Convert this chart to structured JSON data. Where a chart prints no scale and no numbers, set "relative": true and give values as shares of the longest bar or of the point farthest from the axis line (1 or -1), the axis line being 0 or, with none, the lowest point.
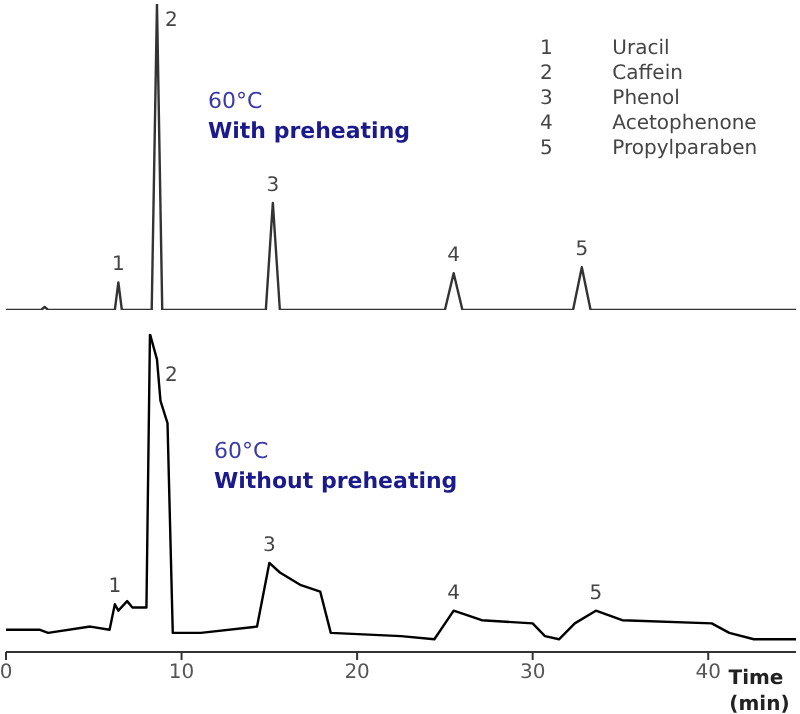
{
  "chart_data": [
    {
      "type": "line",
      "relative": true,
      "xlim": [
        0,
        45
      ],
      "tick_labels": false,
      "marker": "none",
      "line_style": "solid",
      "series": [
        {
          "color": "#333333",
          "x": [
            0,
            2.0,
            2.2,
            2.4,
            6.2,
            6.4,
            6.6,
            8.3,
            8.6,
            8.9,
            14.8,
            15.2,
            15.6,
            25.0,
            25.5,
            26.0,
            32.3,
            32.8,
            33.3,
            45
          ],
          "values": [
            0,
            0,
            0.01,
            0,
            0,
            0.09,
            0,
            0,
            1,
            0,
            0,
            0.35,
            0,
            0,
            0.12,
            0,
            0,
            0.14,
            0,
            0
          ]
        }
      ],
      "annotations": [
        {
          "text": "1",
          "x": 6.4,
          "y": 0.09
        },
        {
          "text": "2",
          "x": 8.6,
          "y": 1
        },
        {
          "text": "3",
          "x": 15.2,
          "y": 0.35
        },
        {
          "text": "4",
          "x": 25.5,
          "y": 0.12
        },
        {
          "text": "5",
          "x": 32.8,
          "y": 0.14
        },
        "60°C",
        "With preheating",
        "1 Uracil",
        "2 Caffein",
        "3 Phenol",
        "4 Acetophenone",
        "5 Propylparaben"
      ]
    },
    {
      "type": "line",
      "relative": true,
      "xlim": [
        0,
        45
      ],
      "xticks": [
        0,
        10,
        20,
        30,
        40
      ],
      "xlabel": "Time (min)",
      "tick_labels": "x",
      "marker": "none",
      "line_style": "solid",
      "series": [
        {
          "color": "#000000",
          "x": [
            0,
            1.9,
            2.4,
            4.8,
            5.9,
            6.2,
            6.4,
            6.9,
            7.2,
            8.0,
            8.2,
            8.6,
            8.8,
            9.2,
            9.5,
            11.1,
            14.3,
            15.0,
            15.6,
            16.8,
            17.9,
            18.5,
            22.5,
            24.4,
            25.5,
            27.1,
            30.0,
            30.7,
            31.5,
            32.4,
            33.6,
            35.1,
            40.2,
            41.2,
            42.6,
            45
          ],
          "values": [
            0.07,
            0.07,
            0.06,
            0.08,
            0.07,
            0.15,
            0.13,
            0.16,
            0.14,
            0.14,
            1,
            0.92,
            0.79,
            0.72,
            0.06,
            0.06,
            0.08,
            0.28,
            0.25,
            0.21,
            0.19,
            0.06,
            0.05,
            0.04,
            0.13,
            0.1,
            0.09,
            0.05,
            0.04,
            0.09,
            0.13,
            0.1,
            0.09,
            0.06,
            0.04,
            0.04
          ]
        }
      ],
      "annotations": [
        {
          "text": "1",
          "x": 6.2,
          "y": 0.15
        },
        {
          "text": "2",
          "x": 8.6,
          "y": 0.92
        },
        {
          "text": "3",
          "x": 15.0,
          "y": 0.28
        },
        {
          "text": "4",
          "x": 25.5,
          "y": 0.13
        },
        {
          "text": "5",
          "x": 33.6,
          "y": 0.13
        },
        "60°C",
        "Without preheating"
      ]
    }
  ]
}
